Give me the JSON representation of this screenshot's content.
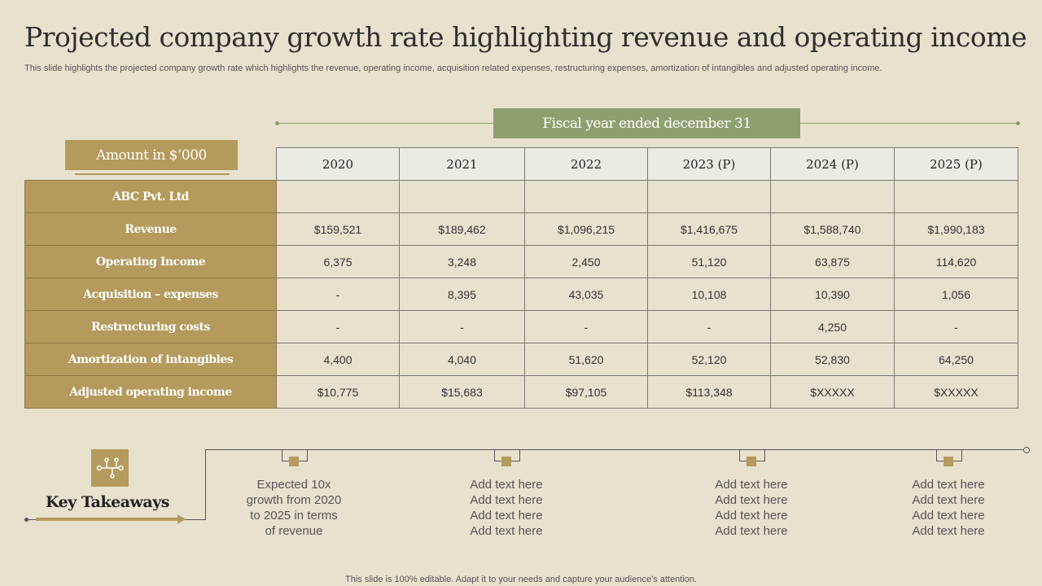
{
  "title": "Projected company growth rate highlighting revenue and operating income",
  "subtitle": "This slide highlights the projected company growth rate which highlights the revenue, operating income, acquisition related expenses, restructuring expenses, amortization of intangibles and adjusted operating income.",
  "fiscal_label": "Fiscal year ended december 31",
  "amount_label": "Amount in $’000",
  "table": {
    "years": [
      "2020",
      "2021",
      "2022",
      "2023 (P)",
      "2024 (P)",
      "2025 (P)"
    ],
    "rows": [
      {
        "label": "ABC Pvt. Ltd",
        "values": [
          "",
          "",
          "",
          "",
          "",
          ""
        ]
      },
      {
        "label": "Revenue",
        "values": [
          "$159,521",
          "$189,462",
          "$1,096,215",
          "$1,416,675",
          "$1,588,740",
          "$1,990,183"
        ]
      },
      {
        "label": "Operating Income",
        "values": [
          "6,375",
          "3,248",
          "2,450",
          "51,120",
          "63,875",
          "114,620"
        ]
      },
      {
        "label": "Acquisition – expenses",
        "values": [
          "-",
          "8,395",
          "43,035",
          "10,108",
          "10,390",
          "1,056"
        ]
      },
      {
        "label": "Restructuring costs",
        "values": [
          "-",
          "-",
          "-",
          "-",
          "4,250",
          "-"
        ]
      },
      {
        "label": "Amortization of intangibles",
        "values": [
          "4,400",
          "4,040",
          "51,620",
          "52,120",
          "52,830",
          "64,250"
        ]
      },
      {
        "label": "Adjusted operating income",
        "values": [
          "$10,775",
          "$15,683",
          "$97,105",
          "$113,348",
          "$XXXXX",
          "$XXXXX"
        ]
      }
    ]
  },
  "key_takeaways": {
    "label": "Key Takeaways",
    "icon": "circuit-icon",
    "items": [
      {
        "lines": [
          "Expected 10x",
          "growth from 2020",
          "to 2025 in terms",
          "of revenue"
        ]
      },
      {
        "lines": [
          "Add text here",
          "Add text here",
          "Add text here",
          "Add text here"
        ]
      },
      {
        "lines": [
          "Add text here",
          "Add text here",
          "Add text here",
          "Add text here"
        ]
      },
      {
        "lines": [
          "Add text here",
          "Add text here",
          "Add text here",
          "Add text here"
        ]
      }
    ]
  },
  "footer": "This slide is 100% editable. Adapt it to your needs and capture your audience's attention.",
  "colors": {
    "gold": "#b49a5c",
    "green": "#8fa06f",
    "background": "#e8e1ce"
  }
}
